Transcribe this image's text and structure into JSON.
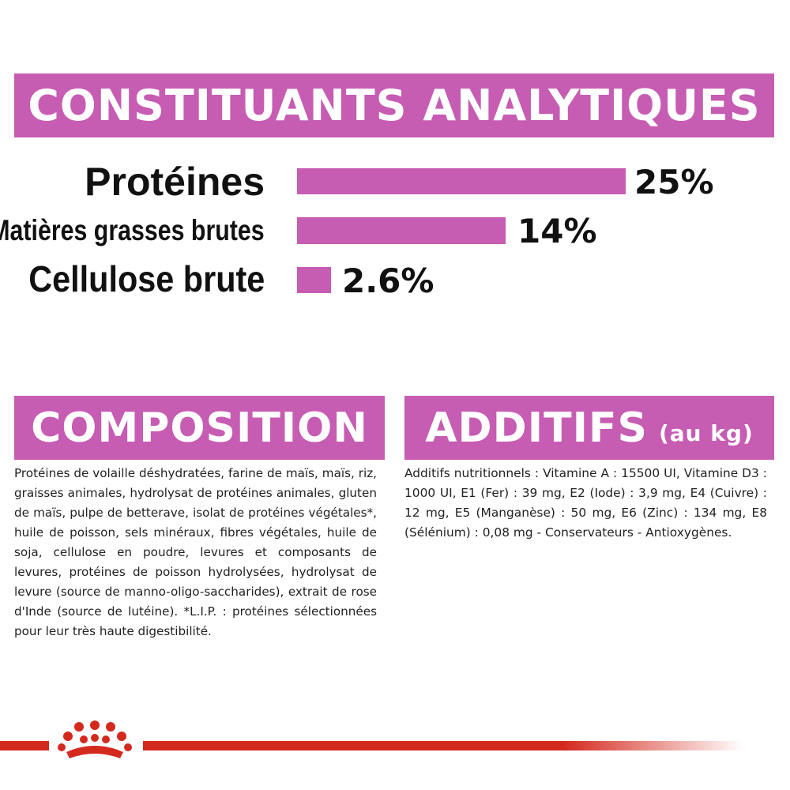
{
  "analytics": {
    "title": "CONSTITUANTS ANALYTIQUES",
    "rows": [
      {
        "label": "Protéines",
        "value": 25,
        "display": "25%"
      },
      {
        "label": "Matières grasses brutes",
        "value": 14,
        "display": "14%"
      },
      {
        "label": "Cellulose brute",
        "value": 2.6,
        "display": "2.6%"
      }
    ]
  },
  "composition": {
    "title": "COMPOSITION",
    "text": "Protéines de volaille déshydratées, farine de maïs, maïs, riz, graisses animales, hydrolysat de protéines animales, gluten de maïs, pulpe de betterave, isolat de protéines végétales*, huile de poisson, sels minéraux, fibres végétales, huile de soja, cellulose en poudre, levures et composants de levures, protéines de poisson hydrolysées, hydrolysat de levure (source de manno-oligo-saccharides), extrait de rose d'Inde (source de lutéine). *L.I.P. : protéines sélectionnées pour leur très haute digestibilité."
  },
  "additifs": {
    "title": "ADDITIFS",
    "subtitle": "(au kg)",
    "text": "Additifs nutritionnels : Vitamine A : 15500 UI, Vitamine D3 : 1000 UI, E1 (Fer) : 39 mg, E2 (Iode) : 3,9 mg, E4 (Cuivre) : 12 mg, E5 (Manganèse) : 50 mg, E6 (Zinc) : 134 mg, E8 (Sélénium) : 0,08 mg - Conservateurs - Antioxygènes."
  },
  "colors": {
    "accent": "#c75cb3",
    "footer_line": "#d42a1e"
  },
  "footer": {
    "logo_icon": "crown-icon"
  }
}
